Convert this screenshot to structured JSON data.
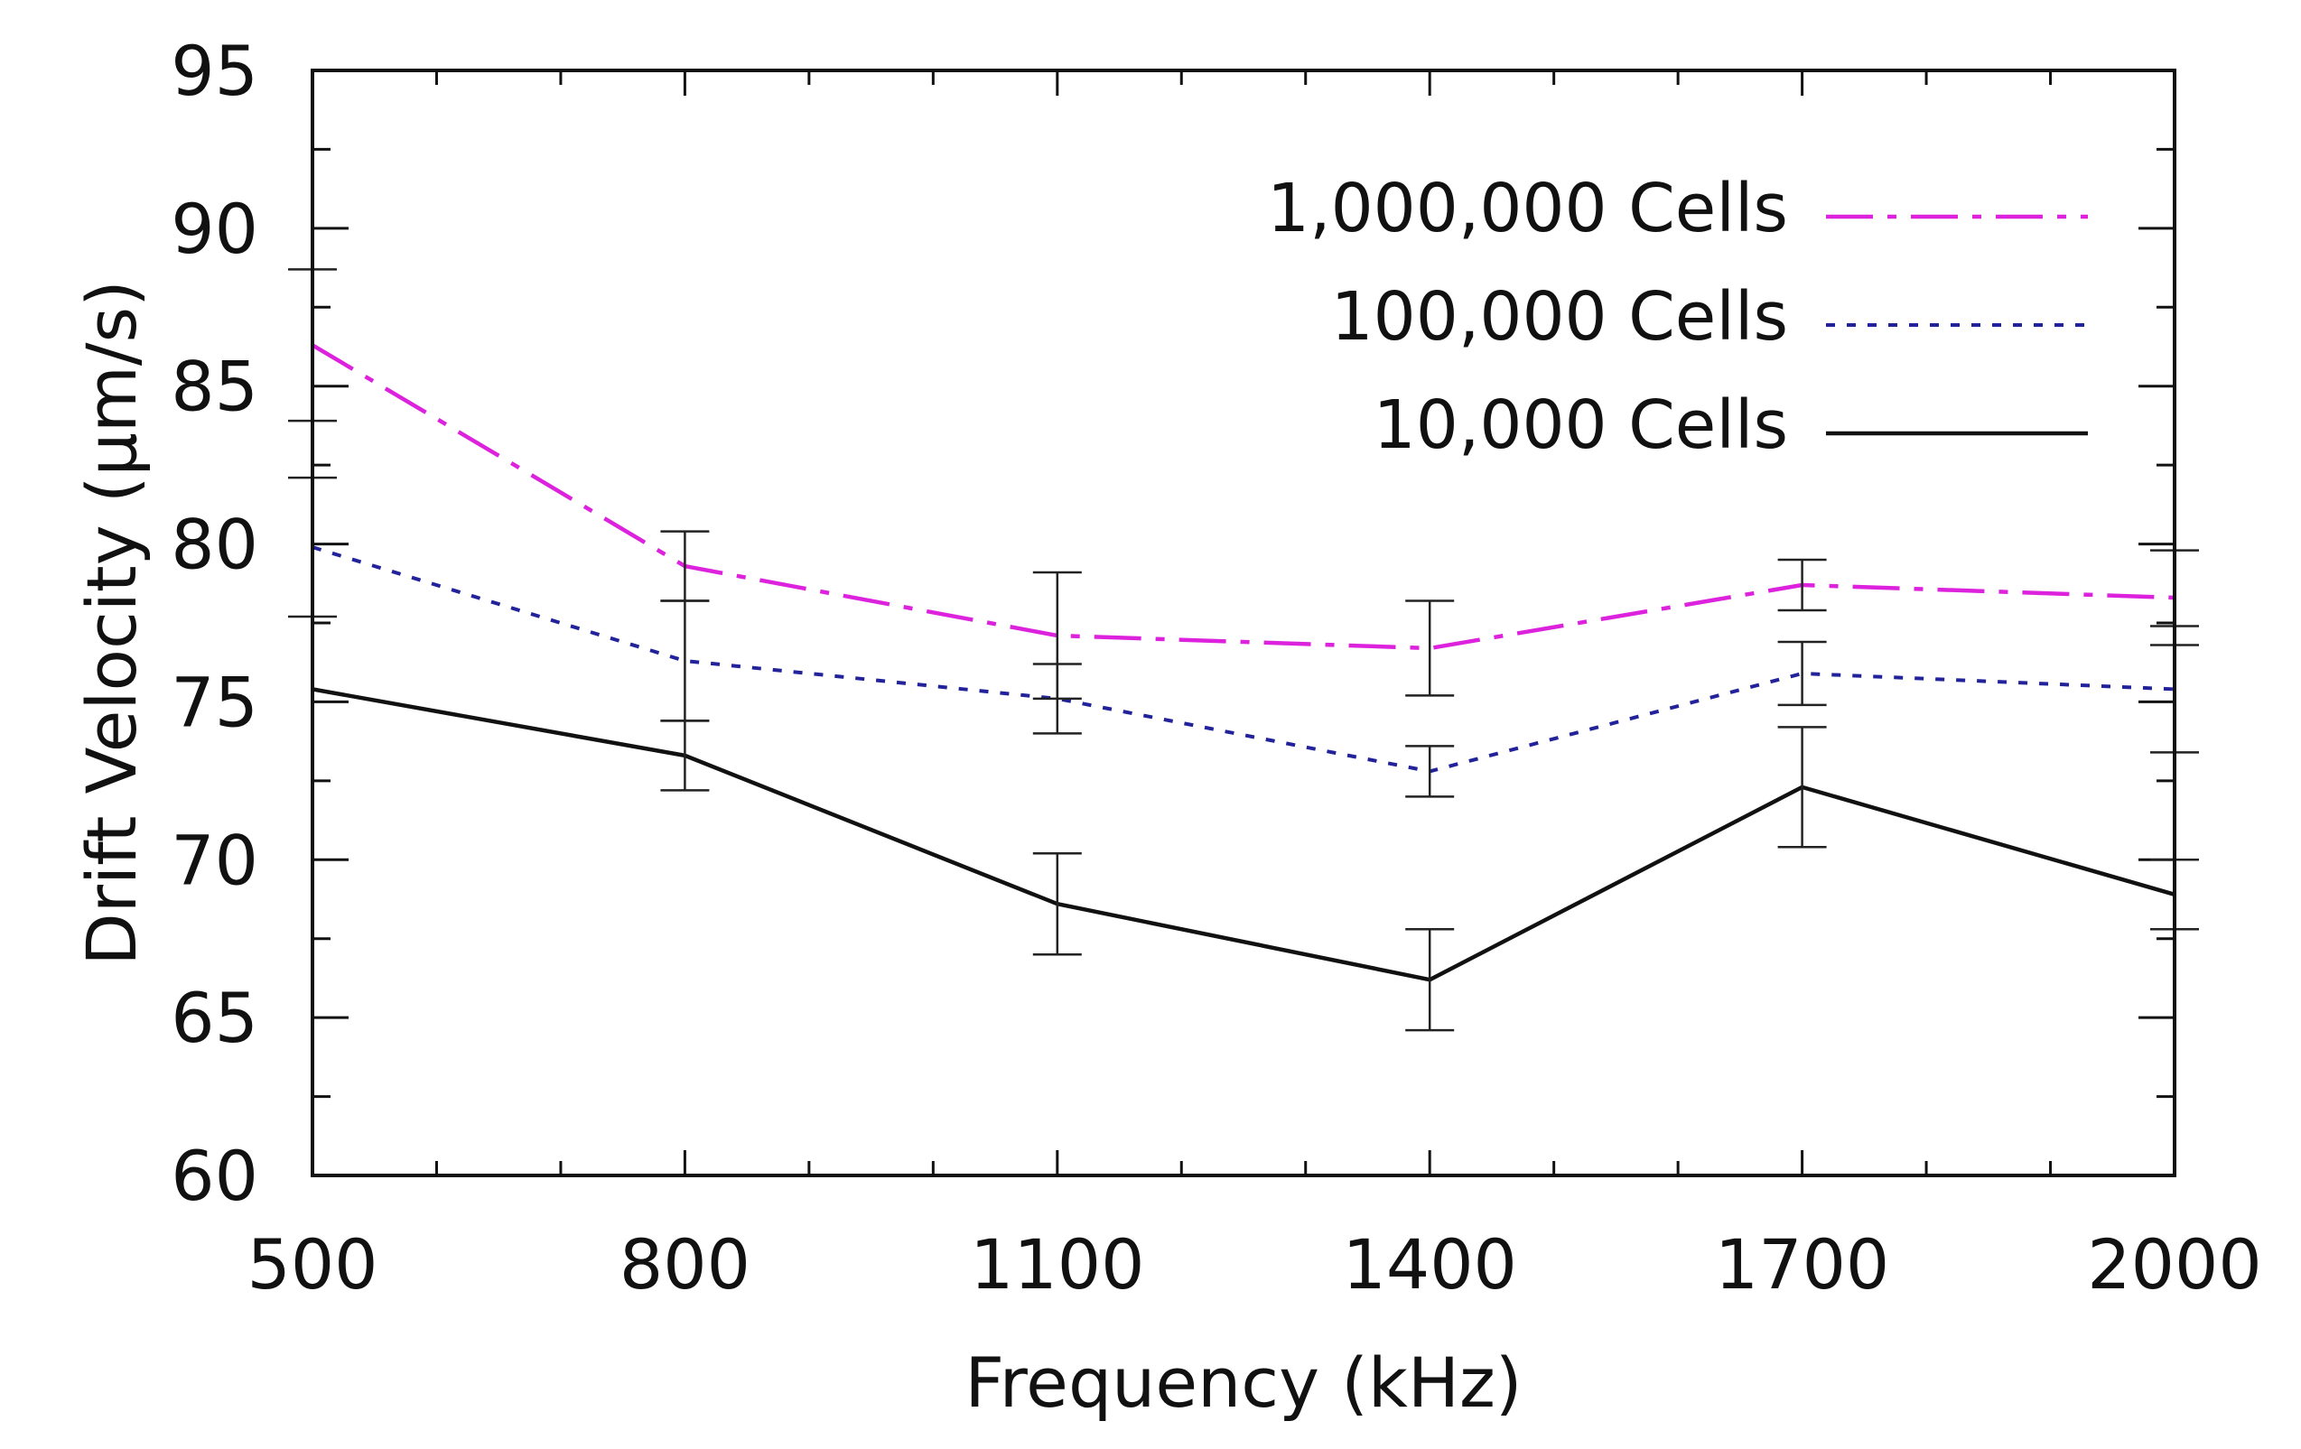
{
  "chart_data": {
    "type": "line",
    "title": "",
    "xlabel": "Frequency (kHz)",
    "ylabel": "Drift Velocity (µm/s)",
    "x": [
      500,
      800,
      1100,
      1400,
      1700,
      2000
    ],
    "xlim": [
      500,
      2000
    ],
    "ylim": [
      60,
      95
    ],
    "xticks": [
      500,
      800,
      1100,
      1400,
      1700,
      2000
    ],
    "yticks": [
      60,
      65,
      70,
      75,
      80,
      85,
      90,
      95
    ],
    "legend_position": "top-right",
    "grid": false,
    "series": [
      {
        "name": "1,000,000 Cells",
        "color": "#dd22dd",
        "style": "dash-dot",
        "values": [
          86.3,
          79.3,
          77.1,
          76.7,
          78.7,
          78.3
        ],
        "error": [
          2.4,
          1.1,
          2.0,
          1.5,
          0.8,
          1.5
        ]
      },
      {
        "name": "100,000 Cells",
        "color": "#22229a",
        "style": "dotted",
        "values": [
          79.9,
          76.3,
          75.1,
          72.8,
          75.9,
          75.4
        ],
        "error": [
          2.2,
          1.9,
          1.1,
          0.8,
          1.0,
          2.0
        ]
      },
      {
        "name": "10,000 Cells",
        "color": "#111111",
        "style": "solid",
        "values": [
          75.4,
          73.3,
          68.6,
          66.2,
          72.3,
          68.9
        ],
        "error": [
          0.0,
          1.1,
          1.6,
          1.6,
          1.9,
          1.1
        ]
      }
    ]
  }
}
